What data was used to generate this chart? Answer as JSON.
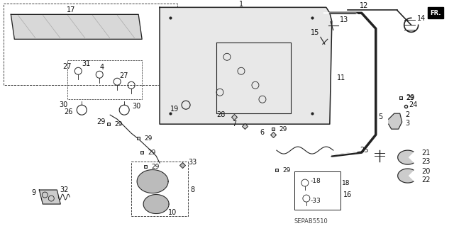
{
  "bg_color": "#ffffff",
  "diagram_code": "SEPAB5510",
  "line_color": "#222222",
  "label_color": "#111111",
  "label_fontsize": 7.0
}
